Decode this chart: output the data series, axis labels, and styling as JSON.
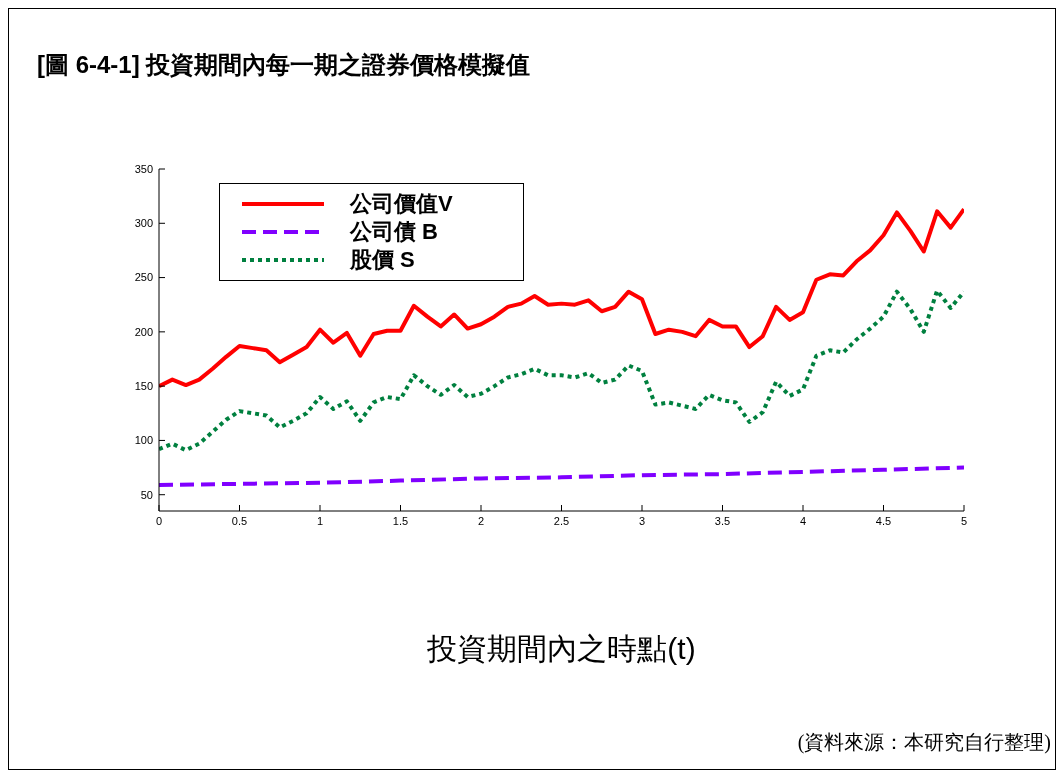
{
  "chart_data": {
    "type": "line",
    "title": "[圖 6-4-1] 投資期間內每一期之證券價格模擬值",
    "xlabel": "投資期間內之時點(t)",
    "annotations": [
      "(資料來源：本研究自行整理)"
    ],
    "x": [
      0,
      0.083,
      0.167,
      0.25,
      0.333,
      0.417,
      0.5,
      0.583,
      0.667,
      0.75,
      0.833,
      0.917,
      1,
      1.083,
      1.167,
      1.25,
      1.333,
      1.417,
      1.5,
      1.583,
      1.667,
      1.75,
      1.833,
      1.917,
      2,
      2.083,
      2.167,
      2.25,
      2.333,
      2.417,
      2.5,
      2.583,
      2.667,
      2.75,
      2.833,
      2.917,
      3,
      3.083,
      3.167,
      3.25,
      3.333,
      3.417,
      3.5,
      3.583,
      3.667,
      3.75,
      3.833,
      3.917,
      4,
      4.083,
      4.167,
      4.25,
      4.333,
      4.417,
      4.5,
      4.583,
      4.667,
      4.75,
      4.833,
      4.917,
      5
    ],
    "series": [
      {
        "name": "公司價值V",
        "color": "#ff0000",
        "line_style": "solid",
        "values": [
          150,
          156,
          151,
          156,
          166,
          177,
          187,
          185,
          183,
          172,
          179,
          186,
          202,
          190,
          199,
          178,
          198,
          201,
          201,
          224,
          214,
          205,
          216,
          203,
          207,
          214,
          223,
          226,
          233,
          225,
          226,
          225,
          229,
          219,
          223,
          237,
          230,
          198,
          202,
          200,
          196,
          211,
          205,
          205,
          186,
          196,
          223,
          211,
          218,
          248,
          253,
          252,
          265,
          275,
          289,
          310,
          293,
          274,
          311,
          296,
          313
        ]
      },
      {
        "name": "公司債 B",
        "color": "#8000ff",
        "line_style": "dashed",
        "x": [
          0,
          0.5,
          1,
          1.5,
          2,
          2.5,
          3,
          3.5,
          4,
          4.5,
          5
        ],
        "values": [
          59,
          60,
          61,
          63,
          65,
          66,
          68,
          69,
          71,
          73,
          75
        ]
      },
      {
        "name": "股價 S",
        "color": "#00803f",
        "line_style": "dotted",
        "values": [
          92,
          97,
          91,
          97,
          108,
          119,
          127,
          125,
          123,
          112,
          118,
          125,
          140,
          129,
          136,
          118,
          135,
          140,
          138,
          160,
          150,
          142,
          151,
          140,
          143,
          150,
          158,
          161,
          166,
          160,
          160,
          158,
          162,
          153,
          156,
          169,
          164,
          133,
          135,
          132,
          129,
          142,
          137,
          135,
          117,
          126,
          154,
          141,
          147,
          178,
          183,
          181,
          193,
          203,
          214,
          237,
          221,
          200,
          238,
          222,
          237
        ]
      }
    ],
    "xlim": [
      0,
      5
    ],
    "xticks": [
      0,
      0.5,
      1,
      1.5,
      2,
      2.5,
      3,
      3.5,
      4,
      4.5,
      5
    ],
    "ylim": [
      35,
      350
    ],
    "yticks": [
      50,
      100,
      150,
      200,
      250,
      300,
      350
    ],
    "grid": false,
    "legend": "top left",
    "marker": "none"
  }
}
